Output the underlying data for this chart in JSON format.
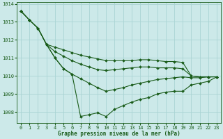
{
  "title": "Graphe pression niveau de la mer (hPa)",
  "background_color": "#cce9e9",
  "grid_color": "#aad4d4",
  "line_color": "#1a5c1a",
  "xlim": [
    -0.5,
    23.5
  ],
  "ylim": [
    1007.4,
    1014.1
  ],
  "xticks": [
    0,
    1,
    2,
    3,
    4,
    5,
    6,
    7,
    8,
    9,
    10,
    11,
    12,
    13,
    14,
    15,
    16,
    17,
    18,
    19,
    20,
    21,
    22,
    23
  ],
  "yticks": [
    1008,
    1009,
    1010,
    1011,
    1012,
    1013,
    1014
  ],
  "series1": [
    1013.6,
    1013.1,
    1012.65,
    1011.75,
    1011.0,
    1010.4,
    1010.1,
    1009.85,
    1009.6,
    1009.35,
    1009.15,
    1009.25,
    1009.35,
    1009.5,
    1009.6,
    1009.7,
    1009.8,
    1009.85,
    1009.9,
    1009.95,
    1009.9,
    1009.9,
    1009.95,
    1009.95
  ],
  "series2": [
    1013.6,
    1013.1,
    1012.65,
    1011.75,
    1011.0,
    1010.4,
    1010.1,
    1007.75,
    1007.85,
    1007.95,
    1007.75,
    1008.15,
    1008.35,
    1008.55,
    1008.7,
    1008.8,
    1009.0,
    1009.1,
    1009.15,
    1009.15,
    1009.5,
    1009.6,
    1009.7,
    1009.95
  ],
  "series3": [
    1013.6,
    1013.1,
    1012.65,
    1011.75,
    1011.35,
    1011.1,
    1010.85,
    1010.65,
    1010.5,
    1010.35,
    1010.3,
    1010.35,
    1010.4,
    1010.45,
    1010.5,
    1010.5,
    1010.45,
    1010.45,
    1010.45,
    1010.4,
    1010.0,
    1009.95,
    1009.95,
    1009.95
  ],
  "series4": [
    1013.6,
    1013.1,
    1012.65,
    1011.75,
    1011.6,
    1011.45,
    1011.3,
    1011.15,
    1011.05,
    1010.95,
    1010.85,
    1010.85,
    1010.85,
    1010.85,
    1010.9,
    1010.9,
    1010.85,
    1010.8,
    1010.8,
    1010.75,
    1010.0,
    1009.95,
    1009.95,
    1009.95
  ]
}
